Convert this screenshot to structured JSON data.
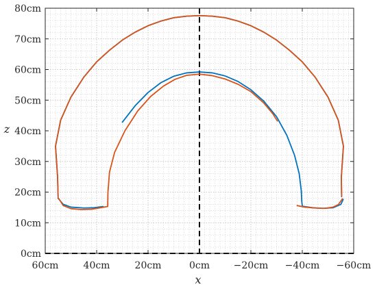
{
  "chart_data": {
    "type": "line",
    "xlabel": "x",
    "ylabel": "z",
    "x_reversed": true,
    "xlim": [
      60,
      -60
    ],
    "ylim": [
      0,
      80
    ],
    "x_ticks": [
      {
        "value": 60,
        "label": "60cm"
      },
      {
        "value": 40,
        "label": "40cm"
      },
      {
        "value": 20,
        "label": "20cm"
      },
      {
        "value": 0,
        "label": "0cm"
      },
      {
        "value": -20,
        "label": "−20cm"
      },
      {
        "value": -40,
        "label": "−40cm"
      },
      {
        "value": -60,
        "label": "−60cm"
      }
    ],
    "y_ticks": [
      {
        "value": 0,
        "label": "0cm"
      },
      {
        "value": 10,
        "label": "10cm"
      },
      {
        "value": 20,
        "label": "20cm"
      },
      {
        "value": 30,
        "label": "30cm"
      },
      {
        "value": 40,
        "label": "40cm"
      },
      {
        "value": 50,
        "label": "50cm"
      },
      {
        "value": 60,
        "label": "60cm"
      },
      {
        "value": 70,
        "label": "70cm"
      },
      {
        "value": 80,
        "label": "80cm"
      }
    ],
    "grid": "major and minor dotted",
    "reference_lines": [
      {
        "orientation": "vertical",
        "x": 0,
        "style": "dashed",
        "color": "#000000"
      },
      {
        "orientation": "horizontal",
        "y": 0,
        "style": "dashed",
        "color": "#000000"
      }
    ],
    "series": [
      {
        "color": "#0072BD",
        "segments": [
          [
            [
              55.0,
              18.0
            ],
            [
              53.0,
              16.0
            ],
            [
              50.0,
              15.1
            ],
            [
              45.0,
              14.8
            ],
            [
              41.0,
              14.9
            ],
            [
              37.5,
              15.3
            ]
          ],
          [
            [
              30.0,
              42.8
            ],
            [
              25.0,
              48.2
            ],
            [
              20.0,
              52.5
            ],
            [
              15.0,
              55.7
            ],
            [
              10.0,
              57.8
            ],
            [
              5.0,
              58.9
            ],
            [
              0.0,
              59.2
            ],
            [
              -5.0,
              58.9
            ],
            [
              -10.0,
              57.9
            ],
            [
              -15.0,
              56.1
            ],
            [
              -20.0,
              53.4
            ],
            [
              -25.0,
              49.7
            ],
            [
              -30.0,
              44.6
            ],
            [
              -34.0,
              38.5
            ],
            [
              -37.0,
              32.0
            ],
            [
              -38.8,
              26.0
            ],
            [
              -39.6,
              20.5
            ],
            [
              -39.8,
              17.0
            ],
            [
              -40.0,
              15.4
            ],
            [
              -44.0,
              14.9
            ],
            [
              -48.0,
              14.7
            ],
            [
              -52.0,
              14.9
            ],
            [
              -55.0,
              16.0
            ],
            [
              -55.9,
              17.6
            ]
          ],
          [
            [
              55.0,
              18.5
            ],
            [
              55.2,
              25.0
            ],
            [
              56.0,
              35.0
            ],
            [
              54.0,
              43.5
            ],
            [
              50.0,
              51.0
            ],
            [
              45.0,
              57.5
            ],
            [
              40.0,
              62.5
            ],
            [
              35.0,
              66.3
            ],
            [
              30.0,
              69.6
            ],
            [
              25.0,
              72.2
            ],
            [
              20.0,
              74.3
            ],
            [
              15.0,
              75.8
            ],
            [
              10.0,
              76.9
            ],
            [
              5.0,
              77.4
            ],
            [
              0.0,
              77.6
            ],
            [
              -5.0,
              77.4
            ],
            [
              -10.0,
              76.9
            ],
            [
              -15.0,
              75.8
            ],
            [
              -20.0,
              74.3
            ],
            [
              -25.0,
              72.2
            ],
            [
              -30.0,
              69.6
            ],
            [
              -35.0,
              66.3
            ],
            [
              -40.0,
              62.5
            ],
            [
              -45.0,
              57.5
            ],
            [
              -50.0,
              51.0
            ],
            [
              -54.0,
              43.5
            ],
            [
              -56.0,
              35.0
            ],
            [
              -55.2,
              25.0
            ],
            [
              -55.3,
              18.5
            ]
          ]
        ]
      },
      {
        "color": "#D95319",
        "segments": [
          [
            [
              55.0,
              18.2
            ],
            [
              53.0,
              15.6
            ],
            [
              50.0,
              14.6
            ],
            [
              46.0,
              14.3
            ],
            [
              42.0,
              14.4
            ],
            [
              38.5,
              14.9
            ],
            [
              35.7,
              15.3
            ],
            [
              35.6,
              20.0
            ],
            [
              35.0,
              26.5
            ],
            [
              33.0,
              33.0
            ],
            [
              29.0,
              40.0
            ],
            [
              24.0,
              46.5
            ],
            [
              19.0,
              51.2
            ],
            [
              14.0,
              54.6
            ],
            [
              9.5,
              56.8
            ],
            [
              5.0,
              58.1
            ],
            [
              0.0,
              58.5
            ],
            [
              -5.0,
              58.0
            ],
            [
              -10.0,
              56.9
            ],
            [
              -15.0,
              55.2
            ],
            [
              -20.0,
              52.8
            ],
            [
              -25.0,
              49.1
            ],
            [
              -28.5,
              45.6
            ],
            [
              -30.3,
              43.2
            ]
          ],
          [
            [
              -38.0,
              15.6
            ],
            [
              -41.0,
              15.1
            ],
            [
              -45.0,
              14.8
            ],
            [
              -49.0,
              14.7
            ],
            [
              -52.0,
              15.1
            ],
            [
              -54.0,
              15.9
            ],
            [
              -55.6,
              17.8
            ]
          ],
          [
            [
              55.0,
              18.7
            ],
            [
              55.2,
              25.0
            ],
            [
              56.0,
              35.0
            ],
            [
              54.0,
              43.5
            ],
            [
              50.0,
              51.0
            ],
            [
              45.0,
              57.5
            ],
            [
              40.0,
              62.5
            ],
            [
              35.0,
              66.3
            ],
            [
              30.0,
              69.6
            ],
            [
              25.0,
              72.2
            ],
            [
              20.0,
              74.3
            ],
            [
              15.0,
              75.8
            ],
            [
              10.0,
              76.9
            ],
            [
              5.0,
              77.4
            ],
            [
              0.0,
              77.6
            ],
            [
              -5.0,
              77.4
            ],
            [
              -10.0,
              76.9
            ],
            [
              -15.0,
              75.8
            ],
            [
              -20.0,
              74.3
            ],
            [
              -25.0,
              72.2
            ],
            [
              -30.0,
              69.6
            ],
            [
              -35.0,
              66.3
            ],
            [
              -40.0,
              62.5
            ],
            [
              -45.0,
              57.5
            ],
            [
              -50.0,
              51.0
            ],
            [
              -54.0,
              43.5
            ],
            [
              -56.0,
              35.0
            ],
            [
              -55.2,
              25.0
            ],
            [
              -55.3,
              18.7
            ]
          ]
        ]
      }
    ]
  }
}
